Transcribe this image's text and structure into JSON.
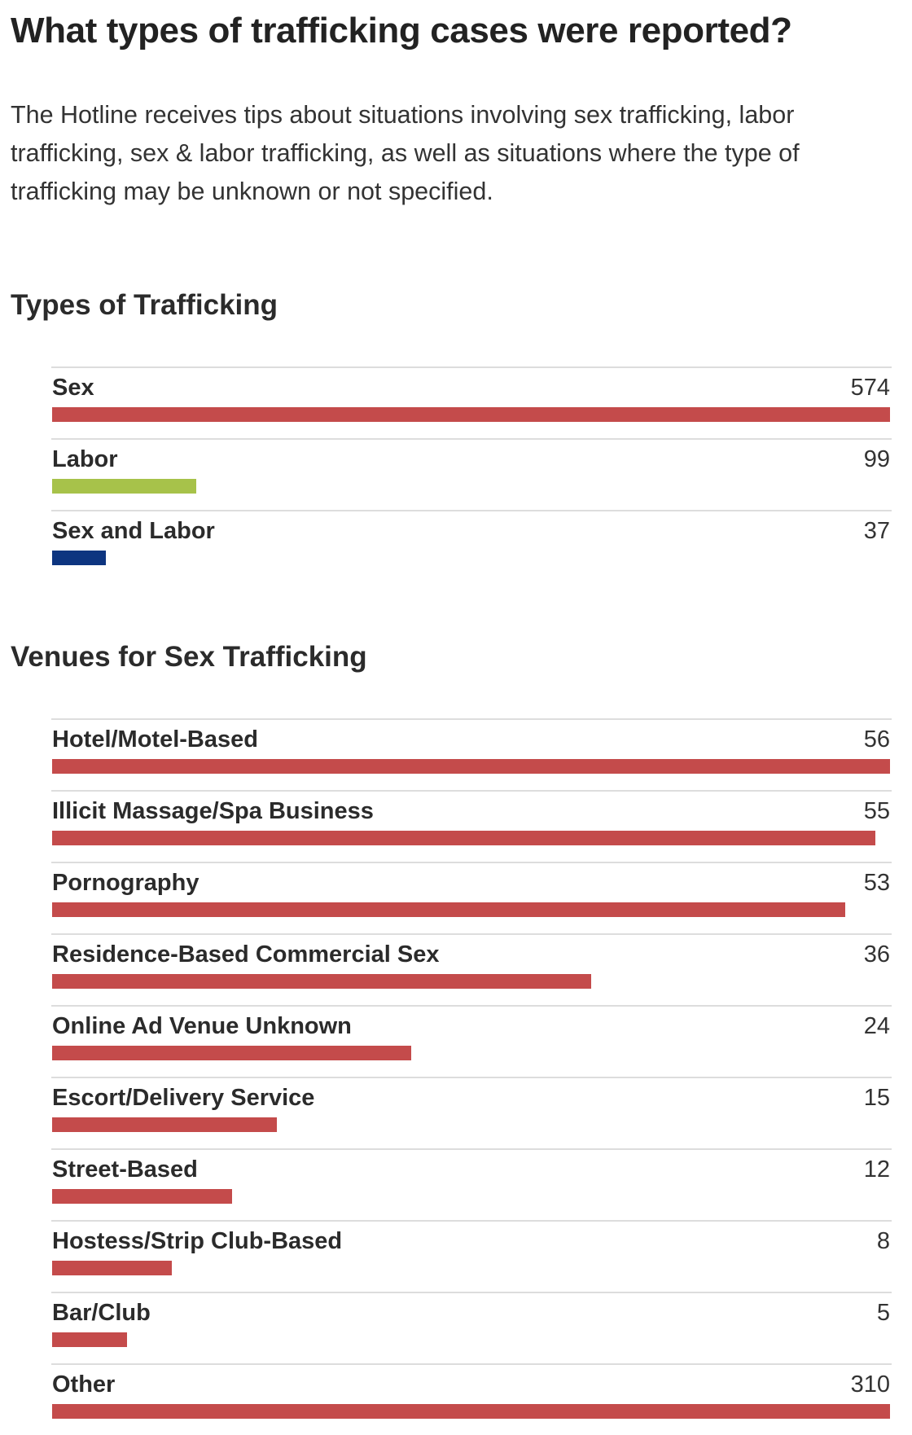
{
  "page": {
    "title": "What types of trafficking cases were reported?",
    "intro": "The Hotline receives tips about situations involving sex trafficking, labor trafficking, sex & labor trafficking, as well as situations where the type of trafficking may be unknown or not specified."
  },
  "chart_data": [
    {
      "type": "bar",
      "orientation": "horizontal",
      "title": "Types of Trafficking",
      "categories": [
        "Sex",
        "Labor",
        "Sex and Labor"
      ],
      "values": [
        574,
        99,
        37
      ],
      "value_labels": [
        "574",
        "99",
        "37"
      ],
      "colors": [
        "#c44b4b",
        "#a7c24a",
        "#0d3580"
      ],
      "xlim": [
        0,
        574
      ],
      "grid": false
    },
    {
      "type": "bar",
      "orientation": "horizontal",
      "title": "Venues for Sex Trafficking",
      "categories": [
        "Hotel/Motel-Based",
        "Illicit Massage/Spa Business",
        "Pornography",
        "Residence-Based Commercial Sex",
        "Online Ad Venue Unknown",
        "Escort/Delivery Service",
        "Street-Based",
        "Hostess/Strip Club-Based",
        "Bar/Club",
        "Other"
      ],
      "values": [
        56,
        55,
        53,
        36,
        24,
        15,
        12,
        8,
        5,
        310
      ],
      "value_labels": [
        "56",
        "55",
        "53",
        "36",
        "24",
        "15",
        "12",
        "8",
        "5",
        "310"
      ],
      "colors": [
        "#c44b4b"
      ],
      "xlim": [
        0,
        56
      ],
      "grid": false
    }
  ]
}
